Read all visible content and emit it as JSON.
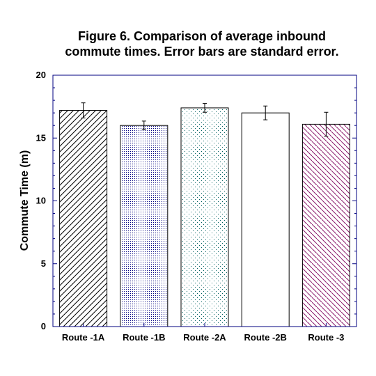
{
  "chart_data": {
    "type": "bar",
    "title_lines": [
      "Figure 6. Comparison of average inbound",
      "commute times. Error bars are standard error."
    ],
    "xlabel": "",
    "ylabel": "Commute Time (m)",
    "ylim": [
      0,
      20
    ],
    "yticks": [
      0,
      5,
      10,
      15,
      20
    ],
    "grid": false,
    "categories": [
      "Route -1A",
      "Route -1B",
      "Route -2A",
      "Route -2B",
      "Route -3"
    ],
    "values": [
      17.2,
      16.0,
      17.4,
      17.0,
      16.1
    ],
    "errors": [
      0.6,
      0.35,
      0.35,
      0.55,
      0.95
    ],
    "fills": [
      "diagonal-hatch",
      "fine-dots",
      "sparse-dots",
      "none",
      "diagonal-hatch-magenta"
    ],
    "colors": {
      "frame": "#000080",
      "bar_outline": "#000000",
      "hatch": "#000000",
      "dots_fine": "#000080",
      "dots_sparse": "#006060",
      "hatch_magenta": "#8b1a6b"
    }
  }
}
